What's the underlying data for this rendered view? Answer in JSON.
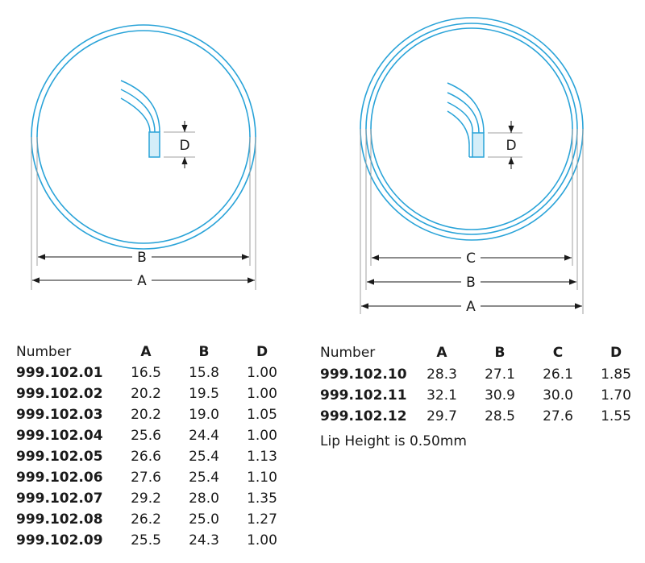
{
  "diagram": {
    "left_labels": {
      "b": "B",
      "a": "A",
      "d": "D"
    },
    "right_labels": {
      "c": "C",
      "b": "B",
      "a": "A",
      "d": "D"
    },
    "colors": {
      "ring": "#29a3d8",
      "fill": "#d4eef9",
      "dim": "#1a1a1a",
      "ext": "#a0a0a0"
    }
  },
  "left_table": {
    "headers": [
      "Number",
      "A",
      "B",
      "D"
    ],
    "rows": [
      [
        "999.102.01",
        "16.5",
        "15.8",
        "1.00"
      ],
      [
        "999.102.02",
        "20.2",
        "19.5",
        "1.00"
      ],
      [
        "999.102.03",
        "20.2",
        "19.0",
        "1.05"
      ],
      [
        "999.102.04",
        "25.6",
        "24.4",
        "1.00"
      ],
      [
        "999.102.05",
        "26.6",
        "25.4",
        "1.13"
      ],
      [
        "999.102.06",
        "27.6",
        "25.4",
        "1.10"
      ],
      [
        "999.102.07",
        "29.2",
        "28.0",
        "1.35"
      ],
      [
        "999.102.08",
        "26.2",
        "25.0",
        "1.27"
      ],
      [
        "999.102.09",
        "25.5",
        "24.3",
        "1.00"
      ]
    ]
  },
  "right_table": {
    "headers": [
      "Number",
      "A",
      "B",
      "C",
      "D"
    ],
    "rows": [
      [
        "999.102.10",
        "28.3",
        "27.1",
        "26.1",
        "1.85"
      ],
      [
        "999.102.11",
        "32.1",
        "30.9",
        "30.0",
        "1.70"
      ],
      [
        "999.102.12",
        "29.7",
        "28.5",
        "27.6",
        "1.55"
      ]
    ]
  },
  "note": "Lip Height is 0.50mm"
}
